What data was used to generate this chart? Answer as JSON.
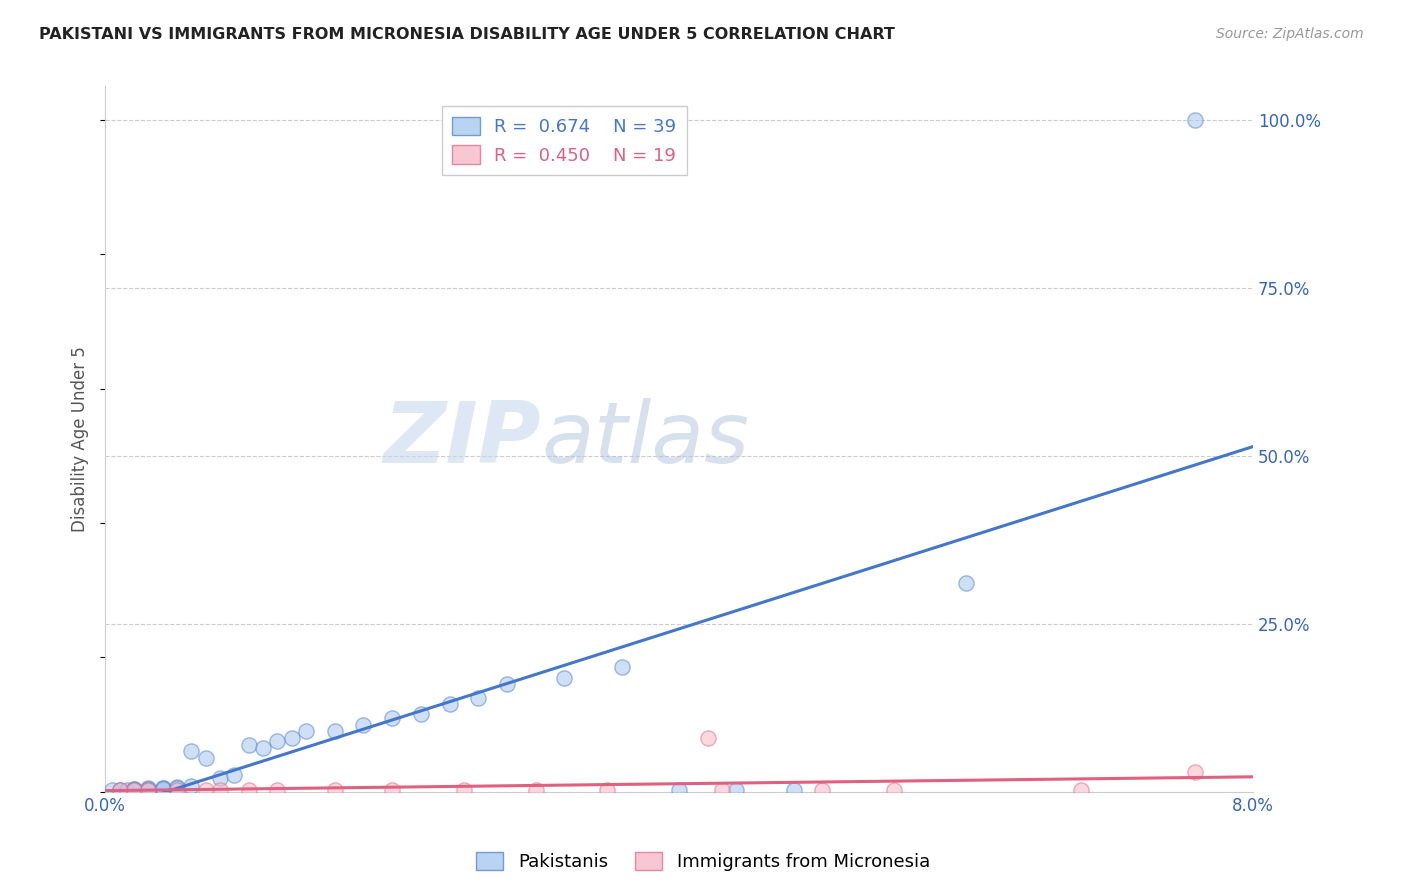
{
  "title": "PAKISTANI VS IMMIGRANTS FROM MICRONESIA DISABILITY AGE UNDER 5 CORRELATION CHART",
  "source": "Source: ZipAtlas.com",
  "ylabel": "Disability Age Under 5",
  "xlim": [
    0.0,
    0.08
  ],
  "ylim": [
    0.0,
    1.05
  ],
  "xtick_positions": [
    0.0,
    0.08
  ],
  "xtick_labels": [
    "0.0%",
    "8.0%"
  ],
  "ytick_positions": [
    0.25,
    0.5,
    0.75,
    1.0
  ],
  "ytick_labels": [
    "25.0%",
    "50.0%",
    "75.0%",
    "100.0%"
  ],
  "grid_color": "#cccccc",
  "background_color": "#ffffff",
  "pakistani_face_color": "#a8c8f0",
  "pakistani_edge_color": "#5588cc",
  "micronesia_face_color": "#f8b8c8",
  "micronesia_edge_color": "#e07090",
  "pakistani_line_color": "#4477cc",
  "micronesia_line_color": "#e06080",
  "text_color_blue": "#3366bb",
  "legend_R_pakistani": "0.674",
  "legend_N_pakistani": "39",
  "legend_R_micronesia": "0.450",
  "legend_N_micronesia": "19",
  "pakistani_x": [
    0.0005,
    0.001,
    0.001,
    0.0015,
    0.002,
    0.002,
    0.002,
    0.003,
    0.003,
    0.003,
    0.004,
    0.004,
    0.004,
    0.005,
    0.005,
    0.006,
    0.006,
    0.007,
    0.008,
    0.009,
    0.01,
    0.011,
    0.012,
    0.013,
    0.014,
    0.016,
    0.018,
    0.02,
    0.022,
    0.024,
    0.026,
    0.028,
    0.032,
    0.036,
    0.04,
    0.044,
    0.048,
    0.06,
    0.076
  ],
  "pakistani_y": [
    0.003,
    0.003,
    0.003,
    0.003,
    0.004,
    0.004,
    0.003,
    0.005,
    0.004,
    0.003,
    0.005,
    0.006,
    0.004,
    0.007,
    0.005,
    0.008,
    0.06,
    0.05,
    0.02,
    0.025,
    0.07,
    0.065,
    0.075,
    0.08,
    0.09,
    0.09,
    0.1,
    0.11,
    0.115,
    0.13,
    0.14,
    0.16,
    0.17,
    0.185,
    0.003,
    0.003,
    0.003,
    0.31,
    1.0
  ],
  "micronesia_x": [
    0.001,
    0.002,
    0.003,
    0.005,
    0.007,
    0.008,
    0.01,
    0.012,
    0.016,
    0.02,
    0.025,
    0.03,
    0.035,
    0.042,
    0.043,
    0.05,
    0.055,
    0.068,
    0.076
  ],
  "micronesia_y": [
    0.003,
    0.003,
    0.003,
    0.003,
    0.003,
    0.003,
    0.003,
    0.003,
    0.003,
    0.003,
    0.003,
    0.003,
    0.003,
    0.08,
    0.003,
    0.003,
    0.003,
    0.003,
    0.03
  ],
  "watermark_zip": "ZIP",
  "watermark_atlas": "atlas",
  "marker_size": 120
}
